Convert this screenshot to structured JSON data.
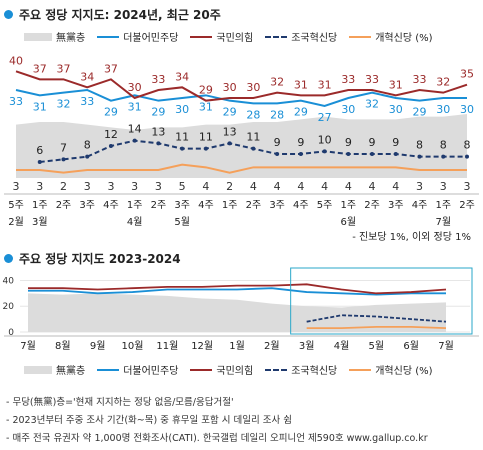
{
  "colors": {
    "none": "#dcdcdc",
    "dem": "#1a8fd6",
    "ppp": "#9b2a2a",
    "rebuild": "#1f3a6e",
    "reform": "#f5a05a",
    "dot": "#1a8fd6"
  },
  "chart1": {
    "title": "주요 정당 지지도: 2024년, 최근 20주",
    "note": "- 진보당 1%, 이외 정당 1%",
    "legend": [
      "無黨층",
      "더불어민주당",
      "국민의힘",
      "조국혁신당",
      "개혁신당 (%)"
    ],
    "weeks": [
      "5주",
      "1주",
      "2주",
      "3주",
      "4주",
      "1주",
      "2주",
      "3주",
      "4주",
      "1주",
      "2주",
      "3주",
      "4주",
      "5주",
      "1주",
      "2주",
      "3주",
      "4주",
      "1주",
      "2주"
    ],
    "months": [
      "2월",
      "3월",
      "",
      "",
      "",
      "4월",
      "",
      "5월",
      "",
      "",
      "",
      "",
      "",
      "",
      "6월",
      "",
      "",
      "",
      "7월",
      ""
    ]
  },
  "chart2": {
    "title": "주요 정당 지지도 2023-2024",
    "legend": [
      "無黨층",
      "더불어민주당",
      "국민의힘",
      "조국혁신당",
      "개혁신당 (%)"
    ],
    "xlabels": [
      "7월",
      "8월",
      "9월",
      "10월",
      "11월",
      "12월",
      "1월",
      "2월",
      "3월",
      "4월",
      "5월",
      "6월",
      "7월"
    ],
    "yticks": [
      "0",
      "20",
      "40"
    ]
  },
  "footnotes": [
    "- 무당(無黨)층='현재 지지하는 정당 없음/모름/응답거절'",
    "- 2023년부터 주중 조사 기간(화~목) 중 휴무일 포함 시 데일리 조사 쉼",
    "- 매주 전국 유권자 약 1,000명 전화조사(CATI). 한국갤럽 데일리 오피니언 제590호 www.gallup.co.kr"
  ],
  "chart_data": [
    {
      "type": "line",
      "title": "주요 정당 지지도: 2024년, 최근 20주",
      "categories": [
        "2월 5주",
        "3월 1주",
        "2주",
        "3주",
        "4주",
        "4월 1주",
        "2주",
        "5월 1주",
        "2주",
        "3주",
        "4주",
        "5주",
        "6월 1주",
        "2주",
        "3주",
        "4주",
        "7월 1주",
        "2주",
        "",
        ""
      ],
      "series": [
        {
          "name": "더불어민주당",
          "values": [
            33,
            31,
            32,
            33,
            29,
            31,
            29,
            30,
            31,
            29,
            28,
            28,
            29,
            27,
            30,
            32,
            30,
            29,
            30,
            30
          ]
        },
        {
          "name": "국민의힘",
          "values": [
            40,
            37,
            37,
            34,
            37,
            30,
            33,
            34,
            29,
            30,
            30,
            32,
            31,
            31,
            33,
            33,
            31,
            33,
            32,
            35
          ]
        },
        {
          "name": "조국혁신당",
          "values": [
            null,
            6,
            7,
            8,
            12,
            14,
            13,
            11,
            11,
            13,
            11,
            9,
            9,
            10,
            9,
            9,
            9,
            8,
            8,
            8
          ]
        },
        {
          "name": "개혁신당",
          "values": [
            3,
            3,
            2,
            3,
            3,
            3,
            3,
            5,
            4,
            2,
            4,
            4,
            4,
            4,
            4,
            4,
            4,
            3,
            3,
            3
          ]
        },
        {
          "name": "無黨층",
          "values": [
            20,
            21,
            21,
            20,
            19,
            18,
            19,
            19,
            20,
            20,
            21,
            21,
            22,
            23,
            22,
            22,
            22,
            23,
            23,
            24
          ]
        }
      ],
      "labels": {
        "더불어민주당": [
          33,
          31,
          32,
          33,
          29,
          31,
          29,
          30,
          31,
          29,
          28,
          28,
          29,
          27,
          30,
          32,
          30,
          29,
          30,
          30
        ],
        "국민의힘": [
          40,
          37,
          37,
          34,
          37,
          30,
          33,
          34,
          29,
          30,
          30,
          32,
          31,
          31,
          33,
          33,
          31,
          33,
          32,
          35
        ],
        "조국혁신당": [
          null,
          6,
          7,
          8,
          12,
          14,
          13,
          11,
          11,
          13,
          11,
          9,
          9,
          10,
          9,
          9,
          9,
          8,
          8,
          8
        ],
        "개혁신당": [
          3,
          3,
          2,
          3,
          3,
          3,
          3,
          5,
          4,
          2,
          4,
          4,
          4,
          4,
          4,
          4,
          4,
          3,
          3,
          3
        ]
      },
      "ylim": [
        0,
        45
      ]
    },
    {
      "type": "line",
      "title": "주요 정당 지지도 2023-2024",
      "x": [
        "7월",
        "8월",
        "9월",
        "10월",
        "11월",
        "12월",
        "1월",
        "2월",
        "3월",
        "4월",
        "5월",
        "6월",
        "7월"
      ],
      "series": [
        {
          "name": "더불어민주당",
          "values": [
            32,
            32,
            30,
            31,
            33,
            33,
            33,
            34,
            31,
            30,
            29,
            30,
            30
          ]
        },
        {
          "name": "국민의힘",
          "values": [
            34,
            34,
            33,
            34,
            35,
            35,
            36,
            36,
            37,
            33,
            30,
            31,
            33
          ]
        },
        {
          "name": "조국혁신당",
          "values": [
            null,
            null,
            null,
            null,
            null,
            null,
            null,
            null,
            8,
            13,
            12,
            10,
            8
          ]
        },
        {
          "name": "개혁신당",
          "values": [
            null,
            null,
            null,
            null,
            null,
            null,
            null,
            null,
            3,
            3,
            4,
            4,
            3
          ]
        },
        {
          "name": "無黨층",
          "values": [
            30,
            29,
            30,
            29,
            28,
            26,
            25,
            22,
            20,
            19,
            21,
            22,
            23
          ]
        }
      ],
      "ylim": [
        0,
        45
      ],
      "yticks": [
        0,
        20,
        40
      ]
    }
  ]
}
